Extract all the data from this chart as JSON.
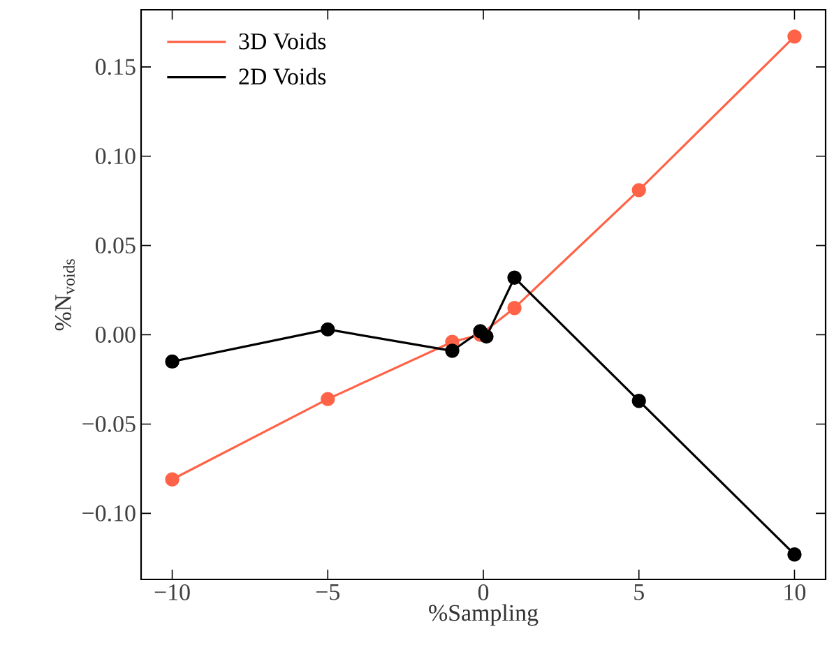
{
  "chart_data": {
    "type": "line",
    "xlabel": "%Sampling",
    "ylabel": "%N$_{voids}$",
    "xlim": [
      -11,
      11
    ],
    "ylim": [
      -0.137,
      0.182
    ],
    "xticks": [
      {
        "value": -10,
        "label": "−10"
      },
      {
        "value": -5,
        "label": "−5"
      },
      0,
      5,
      10
    ],
    "yticks": [
      {
        "value": -0.1,
        "label": "−0.10"
      },
      {
        "value": -0.05,
        "label": "−0.05"
      },
      {
        "value": 0,
        "label": "0.00"
      },
      {
        "value": 0.05,
        "label": "0.05"
      },
      {
        "value": 0.1,
        "label": "0.10"
      },
      {
        "value": 0.15,
        "label": "0.15"
      }
    ],
    "series": [
      {
        "name": "3D Voids",
        "color": "#ff6347",
        "x": [
          -10,
          -5,
          -1,
          -0.1,
          0.1,
          1,
          5,
          10
        ],
        "values": [
          -0.081,
          -0.036,
          -0.004,
          0.0,
          null,
          0.015,
          0.081,
          0.167
        ]
      },
      {
        "name": "2D Voids",
        "color": "#000000",
        "x": [
          -10,
          -5,
          -1,
          -0.1,
          0.1,
          1,
          5,
          10
        ],
        "values": [
          -0.015,
          0.003,
          -0.009,
          0.002,
          -0.001,
          0.032,
          -0.037,
          -0.123
        ]
      }
    ],
    "legend": "top left",
    "marker": "circle",
    "line_style": "solid",
    "grid": false
  }
}
